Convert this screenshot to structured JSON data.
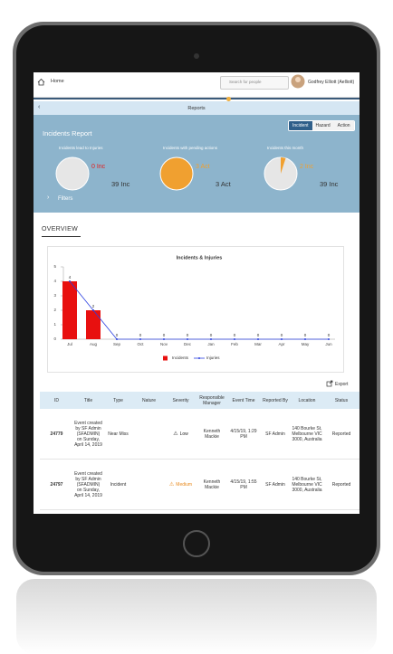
{
  "top_bar": {
    "home": "Home",
    "search_placeholder": "Search for people",
    "user": "Godfrey Elliott (Aelliott)"
  },
  "page_header": "Reports",
  "report": {
    "title": "Incidents Report",
    "tabs": [
      "Incident",
      "Hazard",
      "Action"
    ],
    "tiles": [
      {
        "title": "Incidents lead to Injuries",
        "highlight": "0 Inc",
        "total": "39 Inc",
        "color": "#e41d1d"
      },
      {
        "title": "Incidents with pending actions",
        "highlight": "3 Act",
        "total": "3 Act",
        "color": "#f0a030"
      },
      {
        "title": "Incidents this month",
        "highlight": "2 Inc",
        "total": "39 Inc",
        "color": "#f0a030"
      }
    ],
    "filters": "Filters"
  },
  "overview": "OVERVIEW",
  "chart": {
    "type": "bar",
    "title": "Incidents & Injuries",
    "categories": [
      "Jul",
      "Aug",
      "Sep",
      "Oct",
      "Nov",
      "Dec",
      "Jan",
      "Feb",
      "Mar",
      "Apr",
      "May",
      "Jun"
    ],
    "series": [
      {
        "name": "Incidents",
        "type": "bar",
        "color": "#e8100f",
        "values": [
          4,
          2,
          0,
          0,
          0,
          0,
          0,
          0,
          0,
          0,
          0,
          0
        ]
      },
      {
        "name": "Injuries",
        "type": "line",
        "color": "#2a3fe0",
        "values": [
          4,
          2,
          0,
          0,
          0,
          0,
          0,
          0,
          0,
          0,
          0,
          0
        ]
      }
    ],
    "ylim": [
      0,
      5
    ],
    "yticks": [
      0,
      1,
      2,
      3,
      4,
      5
    ]
  },
  "export": "Export",
  "table": {
    "columns": [
      "ID",
      "Title",
      "Type",
      "Nature",
      "Severity",
      "Responsible Manager",
      "Event Time",
      "Reported By",
      "Location",
      "Status"
    ],
    "severity_colors": {
      "Low": "#222222",
      "Medium": "#e8891c"
    },
    "rows": [
      [
        "24779",
        "Event created by SF Admin (SFADMIN) on Sunday, April 14, 2019",
        "Near Miss",
        null,
        "Low",
        "Kenneth Mackie",
        "4/15/19, 1:29 PM",
        "SF Admin",
        "140 Bourke St, Melbourne VIC 3000, Australia",
        "Reported"
      ],
      [
        "24797",
        "Event created by SF Admin (SFADMIN) on Sunday, April 14, 2019",
        "Incident",
        null,
        "Medium",
        "Kenneth Mackie",
        "4/15/19, 1:55 PM",
        "SF Admin",
        "140 Bourke St, Melbourne VIC 3000, Australia",
        "Reported"
      ]
    ]
  }
}
